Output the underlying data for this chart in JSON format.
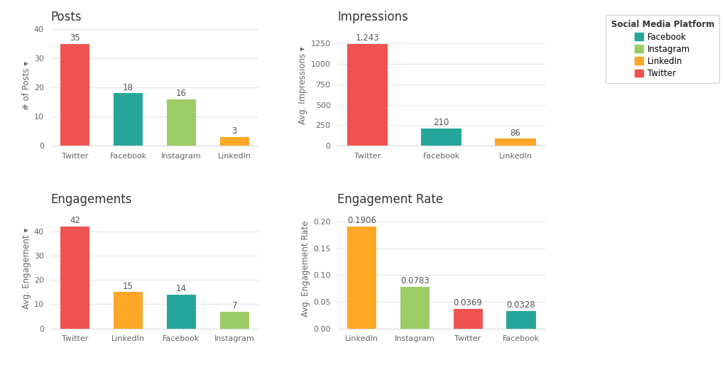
{
  "colors": {
    "Twitter": "#EF5350",
    "Facebook": "#26A69A",
    "Instagram": "#9CCC65",
    "LinkedIn": "#FFA726"
  },
  "posts": {
    "categories": [
      "Twitter",
      "Facebook",
      "Instagram",
      "LinkedIn"
    ],
    "values": [
      35,
      18,
      16,
      3
    ],
    "bar_colors": [
      "#EF5350",
      "#26A69A",
      "#9CCC65",
      "#FFA726"
    ],
    "title": "Posts",
    "ylabel": "# of Posts ▾",
    "labels": [
      "35",
      "18",
      "16",
      "3"
    ]
  },
  "impressions": {
    "categories": [
      "Twitter",
      "Facebook",
      "LinkedIn"
    ],
    "values": [
      1243,
      210,
      86
    ],
    "bar_colors": [
      "#EF5350",
      "#26A69A",
      "#FFA726"
    ],
    "title": "Impressions",
    "ylabel": "Avg. Impressions ▾",
    "labels": [
      "1,243",
      "210",
      "86"
    ]
  },
  "engagements": {
    "categories": [
      "Twitter",
      "LinkedIn",
      "Facebook",
      "Instagram"
    ],
    "values": [
      42,
      15,
      14,
      7
    ],
    "bar_colors": [
      "#EF5350",
      "#FFA726",
      "#26A69A",
      "#9CCC65"
    ],
    "title": "Engagements",
    "ylabel": "Avg. Engagement ▾",
    "labels": [
      "42",
      "15",
      "14",
      "7"
    ]
  },
  "engagement_rate": {
    "categories": [
      "LinkedIn",
      "Instagram",
      "Twitter",
      "Facebook"
    ],
    "values": [
      0.1906,
      0.0783,
      0.0369,
      0.0328
    ],
    "bar_colors": [
      "#FFA726",
      "#9CCC65",
      "#EF5350",
      "#26A69A"
    ],
    "title": "Engagement Rate",
    "ylabel": "Avg. Engagement Rate",
    "labels": [
      "0.1906",
      "0.0783",
      "0.0369",
      "0.0328"
    ]
  },
  "legend": {
    "title": "Social Media Platform",
    "entries": [
      "Facebook",
      "Instagram",
      "LinkedIn",
      "Twitter"
    ],
    "colors": [
      "#26A69A",
      "#9CCC65",
      "#FFA726",
      "#EF5350"
    ]
  },
  "background_color": "#FFFFFF",
  "grid_color": "#E8E8E8",
  "title_fontsize": 12,
  "label_fontsize": 8.5,
  "tick_fontsize": 8,
  "bar_label_fontsize": 8.5,
  "bar_width": 0.55
}
